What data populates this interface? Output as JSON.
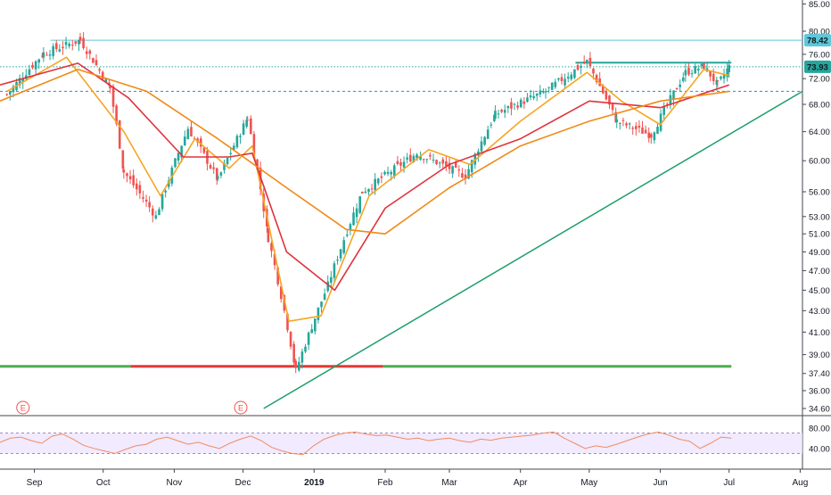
{
  "chart_data": [
    {
      "type": "candlestick",
      "title": "",
      "x_axis": {
        "tick_labels": [
          "Sep",
          "Oct",
          "Nov",
          "Dec",
          "2019",
          "Feb",
          "Mar",
          "Apr",
          "May",
          "Jun",
          "Jul",
          "Aug"
        ],
        "range": [
          "2018-08-17",
          "2019-08-02"
        ]
      },
      "y_axis": {
        "scale": "log",
        "tick_labels": [
          "85.00",
          "80.00",
          "76.00",
          "72.00",
          "68.00",
          "64.00",
          "60.00",
          "56.00",
          "53.00",
          "51.00",
          "49.00",
          "47.00",
          "45.00",
          "43.00",
          "41.00",
          "39.00",
          "37.40",
          "36.00",
          "34.60"
        ],
        "position": "right"
      },
      "ohlc_key_points": [
        {
          "x": "2018-08-20",
          "close": 69.5
        },
        {
          "x": "2018-09-05",
          "close": 76.2
        },
        {
          "x": "2018-09-21",
          "close": 78.4
        },
        {
          "x": "2018-10-04",
          "close": 70.5
        },
        {
          "x": "2018-10-10",
          "close": 58.5
        },
        {
          "x": "2018-10-24",
          "close": 53.0
        },
        {
          "x": "2018-11-07",
          "close": 64.5
        },
        {
          "x": "2018-11-20",
          "close": 57.5
        },
        {
          "x": "2018-12-03",
          "close": 66.0
        },
        {
          "x": "2018-12-12",
          "close": 50.5
        },
        {
          "x": "2018-12-24",
          "close": 37.6
        },
        {
          "x": "2019-01-07",
          "close": 45.5
        },
        {
          "x": "2019-01-22",
          "close": 56.0
        },
        {
          "x": "2019-02-15",
          "close": 61.0
        },
        {
          "x": "2019-03-08",
          "close": 58.0
        },
        {
          "x": "2019-03-21",
          "close": 66.5
        },
        {
          "x": "2019-04-12",
          "close": 70.0
        },
        {
          "x": "2019-04-30",
          "close": 74.8
        },
        {
          "x": "2019-05-13",
          "close": 65.5
        },
        {
          "x": "2019-05-28",
          "close": 63.5
        },
        {
          "x": "2019-06-12",
          "close": 73.0
        },
        {
          "x": "2019-06-20",
          "close": 74.0
        },
        {
          "x": "2019-06-26",
          "close": 71.0
        },
        {
          "x": "2019-07-01",
          "close": 73.93
        }
      ],
      "moving_averages": [
        {
          "color": "#f5a623",
          "values": [
            [
              "2018-08-20",
              70.0
            ],
            [
              "2018-09-15",
              75.5
            ],
            [
              "2018-10-10",
              64.0
            ],
            [
              "2018-10-26",
              55.5
            ],
            [
              "2018-11-10",
              63.0
            ],
            [
              "2018-11-25",
              59.0
            ],
            [
              "2018-12-05",
              62.0
            ],
            [
              "2018-12-21",
              42.0
            ],
            [
              "2019-01-04",
              42.5
            ],
            [
              "2019-01-25",
              55.5
            ],
            [
              "2019-02-20",
              61.5
            ],
            [
              "2019-03-10",
              59.5
            ],
            [
              "2019-04-01",
              65.5
            ],
            [
              "2019-04-30",
              73.0
            ],
            [
              "2019-05-15",
              68.5
            ],
            [
              "2019-06-01",
              65.0
            ],
            [
              "2019-06-20",
              73.5
            ],
            [
              "2019-07-01",
              72.5
            ]
          ]
        },
        {
          "color": "#e0323c",
          "values": [
            [
              "2018-08-17",
              71.0
            ],
            [
              "2018-09-20",
              74.5
            ],
            [
              "2018-10-12",
              69.0
            ],
            [
              "2018-11-05",
              60.5
            ],
            [
              "2018-11-25",
              60.5
            ],
            [
              "2018-12-05",
              61.0
            ],
            [
              "2018-12-20",
              49.0
            ],
            [
              "2019-01-10",
              45.0
            ],
            [
              "2019-02-01",
              54.0
            ],
            [
              "2019-03-01",
              59.5
            ],
            [
              "2019-04-01",
              63.0
            ],
            [
              "2019-05-01",
              68.5
            ],
            [
              "2019-06-01",
              67.5
            ],
            [
              "2019-07-01",
              71.0
            ]
          ]
        },
        {
          "color": "#ef8a17",
          "values": [
            [
              "2018-08-17",
              68.5
            ],
            [
              "2018-09-20",
              73.5
            ],
            [
              "2018-10-20",
              70.0
            ],
            [
              "2018-11-20",
              63.0
            ],
            [
              "2018-12-20",
              56.5
            ],
            [
              "2019-01-15",
              51.5
            ],
            [
              "2019-02-01",
              51.0
            ],
            [
              "2019-03-01",
              56.5
            ],
            [
              "2019-04-01",
              62.0
            ],
            [
              "2019-05-01",
              65.5
            ],
            [
              "2019-06-01",
              68.5
            ],
            [
              "2019-07-01",
              70.0
            ]
          ]
        }
      ],
      "horizontal_lines": [
        {
          "y": 78.42,
          "style": "solid",
          "color": "#5cc8d8",
          "from": "2018-09-08",
          "to": "2019-08-02"
        },
        {
          "y": 73.93,
          "style": "dotted",
          "color": "#26a69a",
          "from": "2018-08-17",
          "to": "2019-08-02"
        },
        {
          "y": 70.0,
          "style": "dashed",
          "color": "#2e86de",
          "from": "2018-08-17",
          "to": "2019-08-02"
        },
        {
          "y": 74.6,
          "style": "solid",
          "color": "#26a69a",
          "from": "2019-04-25",
          "to": "2019-07-02"
        },
        {
          "y": 38.0,
          "style": "solid",
          "color": "#4caf50",
          "from": "2018-08-17",
          "to": "2018-10-13"
        },
        {
          "y": 38.0,
          "style": "solid",
          "color": "#e53935",
          "from": "2018-10-13",
          "to": "2019-01-31"
        },
        {
          "y": 38.0,
          "style": "solid",
          "color": "#4caf50",
          "from": "2019-01-31",
          "to": "2019-07-02"
        }
      ],
      "trendline": {
        "color": "#1e9e6a",
        "from": [
          "2018-12-10",
          34.6
        ],
        "to": [
          "2019-08-02",
          70.0
        ]
      },
      "price_labels": [
        {
          "value": "78.42",
          "bg": "#5cc8d8"
        },
        {
          "value": "73.93",
          "bg": "#26a69a"
        }
      ],
      "earnings_markers": [
        {
          "x": "2018-08-27",
          "label": "E"
        },
        {
          "x": "2018-11-30",
          "label": "E"
        }
      ],
      "up_color": "#26a69a",
      "down_color": "#ef5350"
    },
    {
      "type": "line",
      "title": "",
      "y_axis": {
        "tick_labels": [
          "80.00",
          "40.00"
        ],
        "overbought": 70,
        "oversold": 30
      },
      "series": [
        {
          "color": "#f08c60",
          "values": [
            52,
            60,
            62,
            55,
            50,
            64,
            68,
            58,
            46,
            40,
            35,
            30,
            38,
            45,
            48,
            58,
            62,
            55,
            48,
            52,
            45,
            40,
            50,
            58,
            64,
            55,
            42,
            35,
            30,
            28,
            45,
            58,
            65,
            70,
            72,
            68,
            65,
            66,
            62,
            58,
            60,
            55,
            58,
            60,
            55,
            52,
            58,
            56,
            60,
            62,
            64,
            66,
            70,
            72,
            60,
            50,
            40,
            45,
            42,
            48,
            55,
            62,
            68,
            72,
            66,
            58,
            54,
            40,
            50,
            62,
            60
          ]
        }
      ]
    }
  ]
}
